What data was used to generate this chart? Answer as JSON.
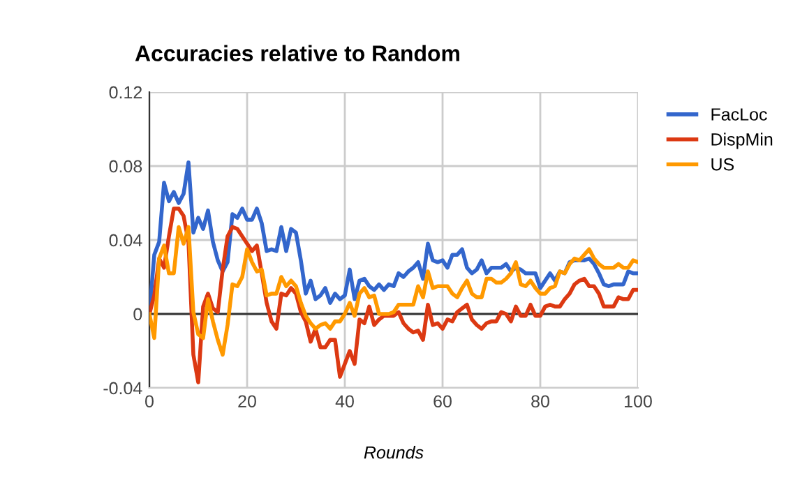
{
  "chart_data": {
    "type": "line",
    "title": "Accuracies relative to Random",
    "xlabel": "Rounds",
    "x": [
      0,
      1,
      2,
      3,
      4,
      5,
      6,
      7,
      8,
      9,
      10,
      11,
      12,
      13,
      14,
      15,
      16,
      17,
      18,
      19,
      20,
      21,
      22,
      23,
      24,
      25,
      26,
      27,
      28,
      29,
      30,
      31,
      32,
      33,
      34,
      35,
      36,
      37,
      38,
      39,
      40,
      41,
      42,
      43,
      44,
      45,
      46,
      47,
      48,
      49,
      50,
      51,
      52,
      53,
      54,
      55,
      56,
      57,
      58,
      59,
      60,
      61,
      62,
      63,
      64,
      65,
      66,
      67,
      68,
      69,
      70,
      71,
      72,
      73,
      74,
      75,
      76,
      77,
      78,
      79,
      80,
      81,
      82,
      83,
      84,
      85,
      86,
      87,
      88,
      89,
      90,
      91,
      92,
      93,
      94,
      95,
      96,
      97,
      98,
      99,
      100
    ],
    "series": [
      {
        "name": "FacLoc",
        "color": "#3366cc",
        "values": [
          0,
          0.032,
          0.039,
          0.071,
          0.061,
          0.066,
          0.06,
          0.065,
          0.082,
          0.044,
          0.052,
          0.046,
          0.056,
          0.039,
          0.029,
          0.023,
          0.028,
          0.054,
          0.052,
          0.057,
          0.051,
          0.051,
          0.057,
          0.049,
          0.034,
          0.035,
          0.034,
          0.047,
          0.034,
          0.046,
          0.044,
          0.029,
          0.011,
          0.018,
          0.008,
          0.01,
          0.014,
          0.006,
          0.011,
          0.008,
          0.01,
          0.024,
          0.008,
          0.018,
          0.019,
          0.015,
          0.013,
          0.016,
          0.013,
          0.016,
          0.015,
          0.022,
          0.02,
          0.023,
          0.025,
          0.028,
          0.019,
          0.038,
          0.029,
          0.028,
          0.029,
          0.025,
          0.032,
          0.032,
          0.035,
          0.025,
          0.022,
          0.024,
          0.029,
          0.022,
          0.025,
          0.025,
          0.025,
          0.027,
          0.023,
          0.025,
          0.024,
          0.022,
          0.022,
          0.022,
          0.014,
          0.018,
          0.022,
          0.018,
          0.023,
          0.022,
          0.028,
          0.029,
          0.029,
          0.029,
          0.03,
          0.027,
          0.022,
          0.016,
          0.015,
          0.016,
          0.016,
          0.016,
          0.023,
          0.022,
          0.022
        ]
      },
      {
        "name": "DispMin",
        "color": "#dc3912",
        "values": [
          0,
          0.01,
          0.03,
          0.025,
          0.042,
          0.057,
          0.057,
          0.053,
          0.039,
          -0.022,
          -0.037,
          0.004,
          0.011,
          0.003,
          0.001,
          0.024,
          0.042,
          0.047,
          0.046,
          0.042,
          0.038,
          0.034,
          0.037,
          0.022,
          0.006,
          -0.004,
          -0.008,
          0.011,
          0.01,
          0.014,
          0.011,
          0.001,
          -0.004,
          -0.015,
          -0.008,
          -0.018,
          -0.018,
          -0.014,
          -0.014,
          -0.034,
          -0.027,
          -0.02,
          -0.027,
          -0.003,
          -0.005,
          0.004,
          -0.006,
          -0.003,
          -0.001,
          -0.001,
          -0.001,
          0.001,
          -0.005,
          -0.008,
          -0.01,
          -0.009,
          -0.014,
          0.005,
          -0.006,
          -0.005,
          -0.008,
          -0.003,
          -0.004,
          0.001,
          0.003,
          0.005,
          -0.003,
          -0.006,
          -0.008,
          -0.005,
          -0.004,
          -0.004,
          0.001,
          0,
          -0.004,
          0.004,
          -0.001,
          -0.001,
          0.005,
          -0.001,
          -0.001,
          0.004,
          0.005,
          0.004,
          0.004,
          0.008,
          0.011,
          0.016,
          0.018,
          0.019,
          0.015,
          0.015,
          0.011,
          0.004,
          0.004,
          0.004,
          0.009,
          0.008,
          0.008,
          0.013,
          0.013
        ]
      },
      {
        "name": "US",
        "color": "#ff9900",
        "values": [
          0,
          -0.013,
          0.03,
          0.037,
          0.022,
          0.022,
          0.047,
          0.038,
          0.047,
          0.001,
          -0.011,
          -0.013,
          0.008,
          -0.004,
          -0.014,
          -0.022,
          -0.006,
          0.016,
          0.015,
          0.02,
          0.035,
          0.028,
          0.023,
          0.024,
          0.01,
          0.011,
          0.011,
          0.02,
          0.015,
          0.018,
          0.015,
          0.006,
          -0.001,
          -0.005,
          -0.008,
          -0.006,
          -0.005,
          -0.008,
          -0.004,
          -0.004,
          0,
          0.006,
          -0.001,
          0.011,
          0.014,
          0.009,
          0.01,
          0,
          0,
          0,
          0.001,
          0.005,
          0.005,
          0.005,
          0.005,
          0.015,
          0.009,
          0.023,
          0.014,
          0.015,
          0.015,
          0.015,
          0.011,
          0.009,
          0.014,
          0.018,
          0.011,
          0.009,
          0.009,
          0.019,
          0.019,
          0.017,
          0.017,
          0.019,
          0.022,
          0.028,
          0.016,
          0.015,
          0.018,
          0.014,
          0.011,
          0.011,
          0.014,
          0.015,
          0.023,
          0.022,
          0.027,
          0.03,
          0.029,
          0.032,
          0.035,
          0.03,
          0.027,
          0.025,
          0.025,
          0.025,
          0.027,
          0.025,
          0.025,
          0.029,
          0.028
        ]
      }
    ],
    "xlim": [
      0,
      100
    ],
    "xticks": [
      0,
      20,
      40,
      60,
      80,
      100
    ],
    "ylim": [
      -0.04,
      0.12
    ],
    "yticks": [
      {
        "value": -0.04,
        "label": "-0.04"
      },
      0,
      0.04,
      0.08,
      0.12
    ],
    "grid": true,
    "legend": "right"
  }
}
